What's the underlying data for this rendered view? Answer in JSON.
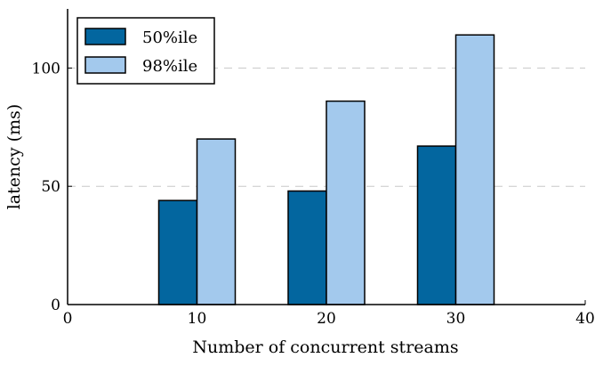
{
  "chart_data": {
    "type": "bar",
    "xlabel": "Number of concurrent streams",
    "ylabel": "latency (ms)",
    "x": [
      10,
      20,
      30
    ],
    "xlim": [
      0,
      40
    ],
    "ylim": [
      0,
      125
    ],
    "xticks": [
      "0",
      "10",
      "20",
      "30",
      "40"
    ],
    "yticks": [
      "0",
      "50",
      "100"
    ],
    "grid": "horizontal dashed at y ticks",
    "legend": "top-left",
    "series": [
      {
        "name": "50%ile",
        "color": "#03669f",
        "values": [
          44,
          48,
          67
        ]
      },
      {
        "name": "98%ile",
        "color": "#a3c9ed",
        "values": [
          70,
          86,
          114
        ]
      }
    ]
  }
}
